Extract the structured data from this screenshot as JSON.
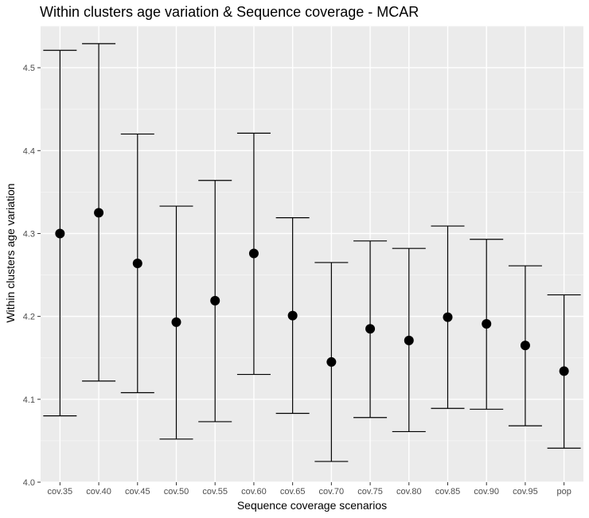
{
  "chart_data": {
    "type": "errorbar",
    "title": "Within clusters age variation & Sequence coverage - MCAR",
    "xlabel": "Sequence coverage scenarios",
    "ylabel": "Within clusters age variation",
    "ylim": [
      4.0,
      4.55
    ],
    "yticks": [
      "4.0",
      "4.1",
      "4.2",
      "4.3",
      "4.4",
      "4.5"
    ],
    "categories": [
      "cov.35",
      "cov.40",
      "cov.45",
      "cov.50",
      "cov.55",
      "cov.60",
      "cov.65",
      "cov.70",
      "cov.75",
      "cov.80",
      "cov.85",
      "cov.90",
      "cov.95",
      "pop"
    ],
    "values": [
      4.3,
      4.325,
      4.264,
      4.193,
      4.219,
      4.276,
      4.201,
      4.145,
      4.185,
      4.171,
      4.199,
      4.191,
      4.165,
      4.134
    ],
    "lower": [
      4.08,
      4.122,
      4.108,
      4.052,
      4.073,
      4.13,
      4.083,
      4.025,
      4.078,
      4.061,
      4.089,
      4.088,
      4.068,
      4.041
    ],
    "upper": [
      4.521,
      4.529,
      4.42,
      4.333,
      4.364,
      4.421,
      4.319,
      4.265,
      4.291,
      4.282,
      4.309,
      4.293,
      4.261,
      4.226
    ],
    "grid": true,
    "legend": "none",
    "colors": {
      "panel": "#ebebeb",
      "grid_major": "#ffffff",
      "grid_minor": "#f5f5f5",
      "mark": "#000000",
      "tick": "#333333"
    }
  }
}
